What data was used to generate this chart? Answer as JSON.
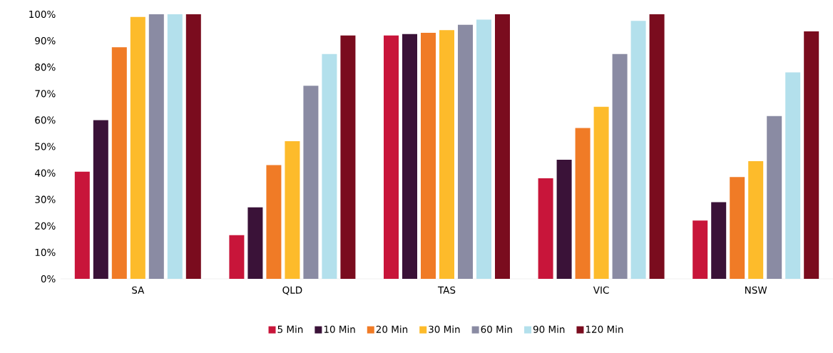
{
  "chart_data": {
    "type": "bar",
    "categories": [
      "SA",
      "QLD",
      "TAS",
      "VIC",
      "NSW"
    ],
    "series": [
      {
        "name": "5 Min",
        "color": "#c8153a",
        "values": [
          40.5,
          16.5,
          92,
          38,
          22
        ]
      },
      {
        "name": "10 Min",
        "color": "#3a1238",
        "values": [
          60,
          27,
          92.5,
          45,
          29
        ]
      },
      {
        "name": "20 Min",
        "color": "#f07b26",
        "values": [
          87.5,
          43,
          93,
          57,
          38.5
        ]
      },
      {
        "name": "30 Min",
        "color": "#fdbb2b",
        "values": [
          99,
          52,
          94,
          65,
          44.5
        ]
      },
      {
        "name": "60 Min",
        "color": "#8a8ba3",
        "values": [
          100,
          73,
          96,
          85,
          61.5
        ]
      },
      {
        "name": "90 Min",
        "color": "#b3e0ec",
        "values": [
          100,
          85,
          98,
          97.5,
          78
        ]
      },
      {
        "name": "120 Min",
        "color": "#7a0c1e",
        "values": [
          100,
          92,
          100,
          100,
          93.5
        ]
      }
    ],
    "ylim": [
      0,
      100
    ],
    "yticks": [
      {
        "value": 0,
        "label": "0%"
      },
      {
        "value": 10,
        "label": "10%"
      },
      {
        "value": 20,
        "label": "20%"
      },
      {
        "value": 30,
        "label": "30%"
      },
      {
        "value": 40,
        "label": "40%"
      },
      {
        "value": 50,
        "label": "50%"
      },
      {
        "value": 60,
        "label": "60%"
      },
      {
        "value": 70,
        "label": "70%"
      },
      {
        "value": 80,
        "label": "80%"
      },
      {
        "value": 90,
        "label": "90%"
      },
      {
        "value": 100,
        "label": "100%"
      }
    ],
    "legend": "bottom"
  }
}
